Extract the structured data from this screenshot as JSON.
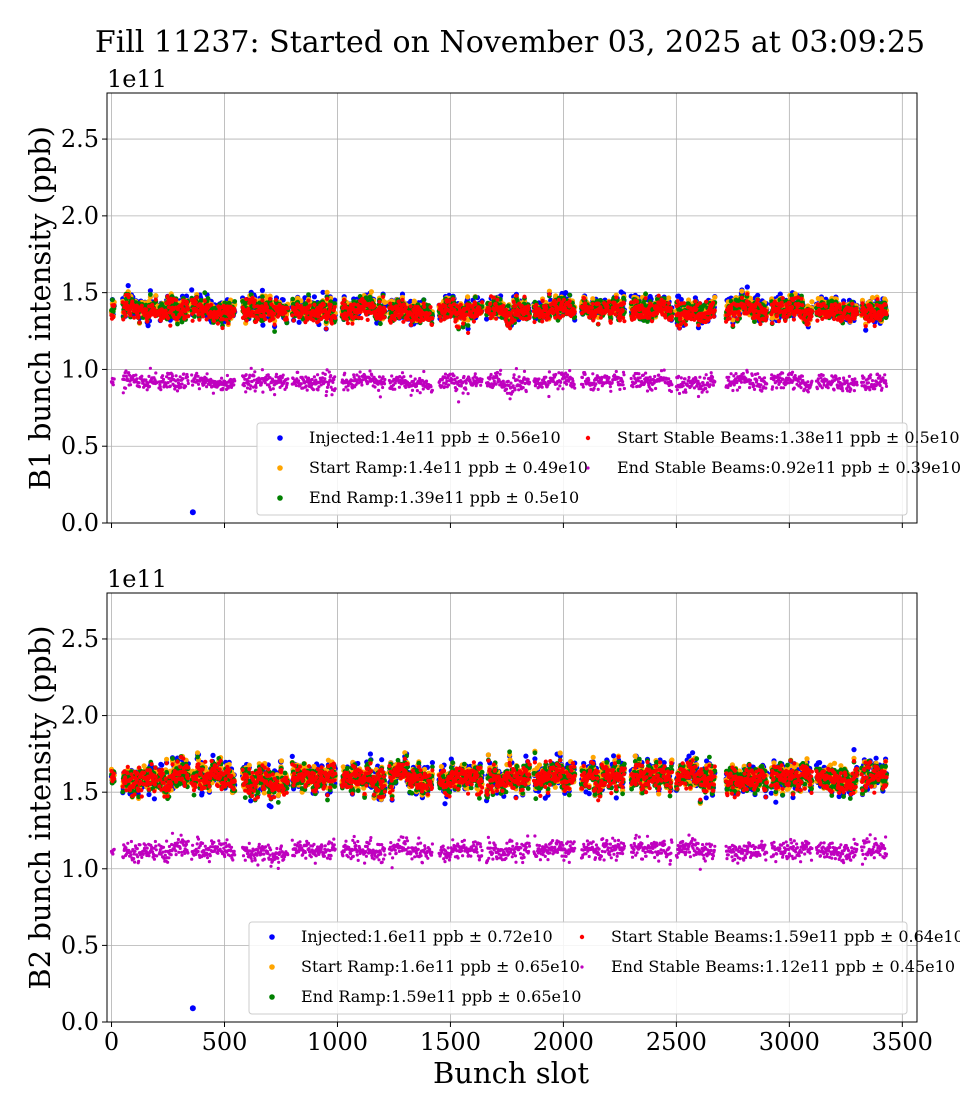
{
  "chart_data": {
    "type": "scatter",
    "title": "Fill 11237: Started on November 03, 2025 at 03:09:25",
    "xlabel": "Bunch slot",
    "xlim": [
      -20,
      3565
    ],
    "xticks": [
      "0",
      "500",
      "1000",
      "1500",
      "2000",
      "2500",
      "3000",
      "3500"
    ],
    "yticks": [
      "0.0",
      "0.5",
      "1.0",
      "1.5",
      "2.0",
      "2.5"
    ],
    "ylim": [
      0,
      2.8
    ],
    "y_multiplier": "1e11",
    "grid": true,
    "legend_placement": "lower-right",
    "filled_slot_ranges": [
      [
        0,
        12
      ],
      [
        50,
        200
      ],
      [
        210,
        340
      ],
      [
        355,
        545
      ],
      [
        580,
        780
      ],
      [
        800,
        990
      ],
      [
        1020,
        1210
      ],
      [
        1230,
        1420
      ],
      [
        1450,
        1640
      ],
      [
        1660,
        1850
      ],
      [
        1870,
        2050
      ],
      [
        2080,
        2270
      ],
      [
        2300,
        2480
      ],
      [
        2500,
        2670
      ],
      [
        2720,
        2900
      ],
      [
        2920,
        3100
      ],
      [
        3120,
        3300
      ],
      [
        3320,
        3430
      ]
    ],
    "panels": [
      {
        "ylabel": "B1 bunch intensity (ppb)",
        "outlier": {
          "series": "Injected",
          "x": 360,
          "y": 0.07
        },
        "series": [
          {
            "name": "Injected",
            "label": "Injected:1.4e11 ppb ± 0.56e10",
            "mean": 1.4,
            "std": 0.056,
            "color": "#0000ff"
          },
          {
            "name": "Start Ramp",
            "label": "Start Ramp:1.4e11 ppb ± 0.49e10",
            "mean": 1.4,
            "std": 0.049,
            "color": "#ffa500"
          },
          {
            "name": "End Ramp",
            "label": "End Ramp:1.39e11 ppb ± 0.5e10",
            "mean": 1.39,
            "std": 0.05,
            "color": "#008000"
          },
          {
            "name": "Start Stable Beams",
            "label": "Start Stable Beams:1.38e11 ppb ± 0.5e10",
            "mean": 1.38,
            "std": 0.05,
            "color": "#ff0000"
          },
          {
            "name": "End Stable Beams",
            "label": "End Stable Beams:0.92e11 ppb ± 0.39e10",
            "mean": 0.92,
            "std": 0.039,
            "color": "#bf00bf"
          }
        ]
      },
      {
        "ylabel": "B2 bunch intensity (ppb)",
        "outlier": {
          "series": "Injected",
          "x": 360,
          "y": 0.09
        },
        "series": [
          {
            "name": "Injected",
            "label": "Injected:1.6e11 ppb ± 0.72e10",
            "mean": 1.6,
            "std": 0.072,
            "color": "#0000ff"
          },
          {
            "name": "Start Ramp",
            "label": "Start Ramp:1.6e11 ppb ± 0.65e10",
            "mean": 1.6,
            "std": 0.065,
            "color": "#ffa500"
          },
          {
            "name": "End Ramp",
            "label": "End Ramp:1.59e11 ppb ± 0.65e10",
            "mean": 1.59,
            "std": 0.065,
            "color": "#008000"
          },
          {
            "name": "Start Stable Beams",
            "label": "Start Stable Beams:1.59e11 ppb ± 0.64e10",
            "mean": 1.59,
            "std": 0.064,
            "color": "#ff0000"
          },
          {
            "name": "End Stable Beams",
            "label": "End Stable Beams:1.12e11 ppb ± 0.45e10",
            "mean": 1.12,
            "std": 0.045,
            "color": "#bf00bf"
          }
        ]
      }
    ]
  }
}
